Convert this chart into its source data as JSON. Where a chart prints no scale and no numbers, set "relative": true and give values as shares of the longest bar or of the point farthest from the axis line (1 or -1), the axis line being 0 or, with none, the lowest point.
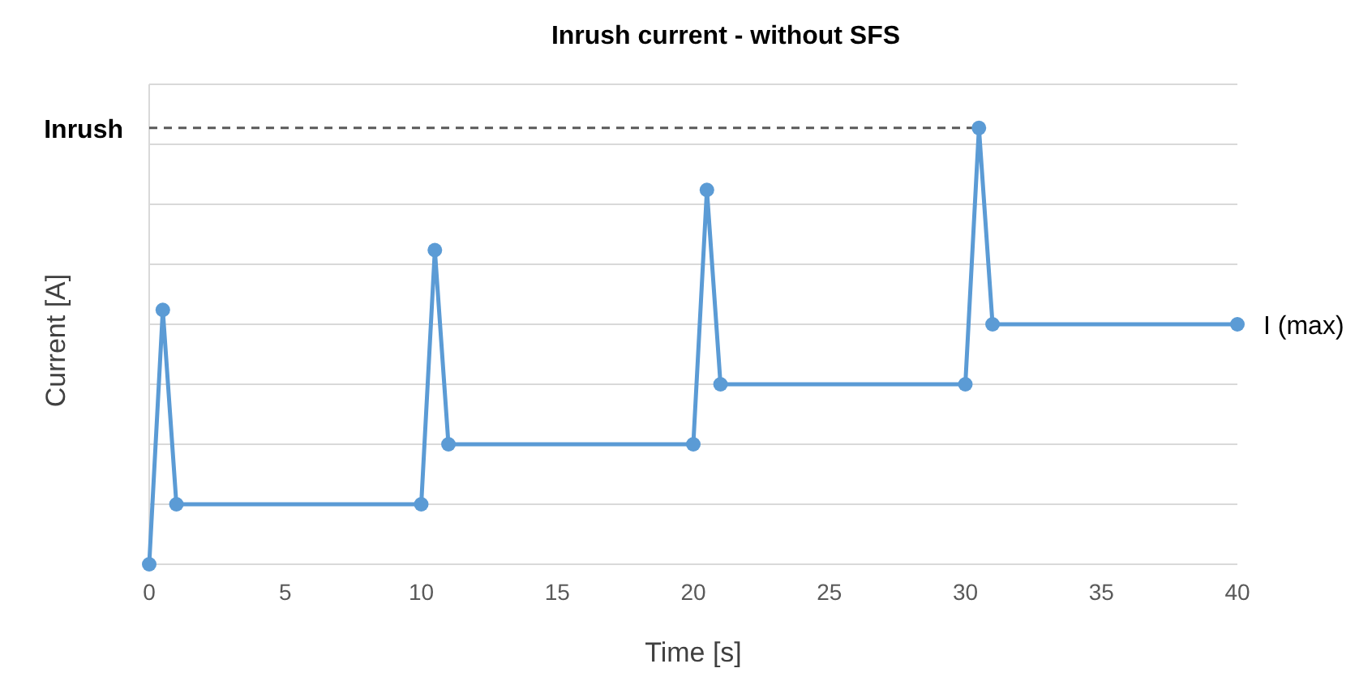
{
  "chart_data": {
    "type": "line",
    "title": "Inrush current - without SFS",
    "xlabel": "Time [s]",
    "ylabel": "Current [A]",
    "relative": true,
    "tick_labels": "x",
    "xlim": [
      0,
      40
    ],
    "xticks": [
      0,
      5,
      10,
      15,
      20,
      25,
      30,
      35,
      40
    ],
    "grid": "y",
    "marker": "circle",
    "line_style": "solid",
    "x": [
      0,
      0.5,
      1,
      10,
      10.5,
      11,
      20,
      20.5,
      21,
      30,
      30.5,
      31,
      40
    ],
    "series": [
      {
        "color": "#5b9bd5",
        "values": [
          0,
          0.583,
          0.1375,
          0.1375,
          0.72,
          0.275,
          0.275,
          0.858,
          0.4125,
          0.4125,
          1,
          0.55,
          0.55
        ]
      }
    ],
    "ref_lines": [
      {
        "axis": "y",
        "value": 1,
        "label": "Inrush",
        "color": "#595959",
        "line_style": "dashed"
      }
    ],
    "annotations": [
      {
        "text": "I (max)",
        "x": 40,
        "y": 0.55
      }
    ]
  }
}
